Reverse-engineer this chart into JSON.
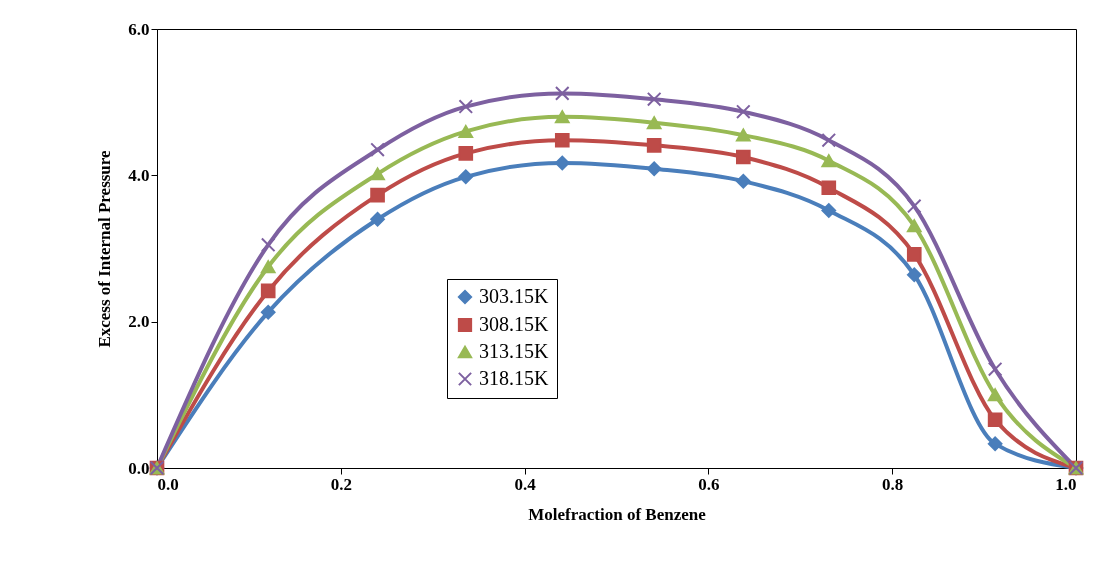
{
  "chart_data": {
    "type": "line",
    "xlabel": "Molefraction  of Benzene",
    "ylabel": "Excess  of  Internal  Pressure",
    "x": [
      0,
      0.121,
      0.24,
      0.336,
      0.441,
      0.541,
      0.638,
      0.731,
      0.824,
      0.912,
      1.0
    ],
    "series": [
      {
        "name": "303.15K",
        "color": "#4a7ebb",
        "marker": "diamond",
        "values": [
          0,
          2.13,
          3.4,
          3.98,
          4.17,
          4.09,
          3.92,
          3.52,
          2.64,
          0.33,
          0
        ]
      },
      {
        "name": "308.15K",
        "color": "#be4b48",
        "marker": "square",
        "values": [
          0,
          2.42,
          3.73,
          4.3,
          4.48,
          4.41,
          4.25,
          3.83,
          2.92,
          0.66,
          0
        ]
      },
      {
        "name": "313.15K",
        "color": "#98b954",
        "marker": "triangle",
        "values": [
          0,
          2.75,
          4.02,
          4.6,
          4.8,
          4.72,
          4.55,
          4.2,
          3.31,
          1.0,
          0
        ]
      },
      {
        "name": "318.15K",
        "color": "#7d60a0",
        "marker": "cross",
        "values": [
          0,
          3.05,
          4.35,
          4.94,
          5.12,
          5.04,
          4.87,
          4.48,
          3.58,
          1.35,
          0
        ]
      }
    ],
    "xlim": [
      0,
      1.0
    ],
    "xticks": [
      {
        "value": 0,
        "label": "0.0"
      },
      0.2,
      0.4,
      0.6,
      0.8,
      {
        "value": 1,
        "label": "1.0"
      }
    ],
    "ylim": [
      0,
      6.0
    ],
    "yticks": [
      {
        "value": 0,
        "label": "0.0"
      },
      {
        "value": 2,
        "label": "2.0"
      },
      {
        "value": 4,
        "label": "4.0"
      },
      {
        "value": 6,
        "label": "6.0"
      }
    ],
    "grid": false,
    "legend": "bottom",
    "line_style": "solid"
  }
}
